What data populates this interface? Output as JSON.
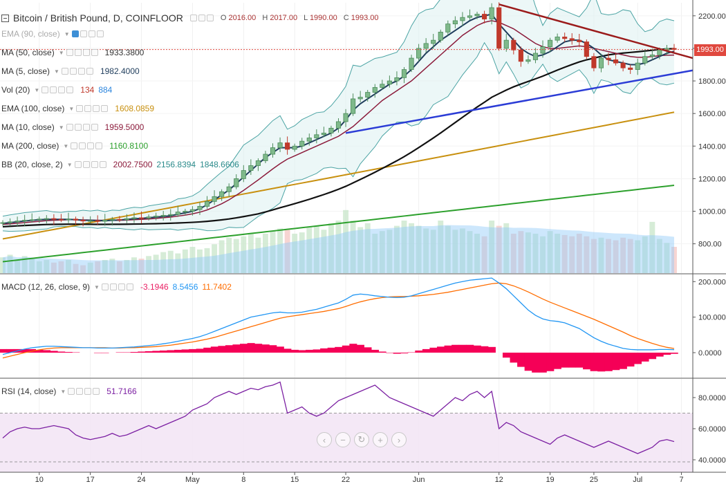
{
  "header": {
    "title": "Bitcoin / British Pound, D, COINFLOOR",
    "ohlc": {
      "o_label": "O",
      "o": "2016.00",
      "h_label": "H",
      "h": "2017.00",
      "l_label": "L",
      "l": "1990.00",
      "c_label": "C",
      "c": "1993.00"
    }
  },
  "legend": [
    {
      "name": "EMA (90, close)",
      "values": [],
      "muted": true
    },
    {
      "name": "MA (50, close)",
      "values": [
        {
          "v": "1933.3800",
          "color": "#333333"
        }
      ]
    },
    {
      "name": "MA (5, close)",
      "values": [
        {
          "v": "1982.4000",
          "color": "#1f3d5c"
        }
      ]
    },
    {
      "name": "Vol (20)",
      "values": [
        {
          "v": "134",
          "color": "#c0392b"
        },
        {
          "v": "884",
          "color": "#2e86de"
        }
      ]
    },
    {
      "name": "EMA (100, close)",
      "values": [
        {
          "v": "1608.0859",
          "color": "#c8900f"
        }
      ]
    },
    {
      "name": "MA (10, close)",
      "values": [
        {
          "v": "1959.5000",
          "color": "#8b1a3a"
        }
      ]
    },
    {
      "name": "MA (200, close)",
      "values": [
        {
          "v": "1160.8100",
          "color": "#2ca02c"
        }
      ]
    },
    {
      "name": "BB (20, close, 2)",
      "values": [
        {
          "v": "2002.7500",
          "color": "#8b1a3a"
        },
        {
          "v": "2156.8394",
          "color": "#2a8a8a"
        },
        {
          "v": "1848.6606",
          "color": "#2a8a8a"
        }
      ]
    }
  ],
  "macd_legend": {
    "name": "MACD (12, 26, close, 9)",
    "values": [
      {
        "v": "-3.1946",
        "color": "#e91e63"
      },
      {
        "v": "8.5456",
        "color": "#2196f3"
      },
      {
        "v": "11.7402",
        "color": "#ff6d00"
      }
    ]
  },
  "rsi_legend": {
    "name": "RSI (14, close)",
    "values": [
      {
        "v": "51.7166",
        "color": "#7b1fa2"
      }
    ]
  },
  "last_price": "1993.00",
  "nav_buttons": [
    {
      "name": "scroll-left-button",
      "glyph": "‹"
    },
    {
      "name": "zoom-out-button",
      "glyph": "−"
    },
    {
      "name": "reset-button",
      "glyph": "↻"
    },
    {
      "name": "zoom-in-button",
      "glyph": "+"
    },
    {
      "name": "scroll-right-button",
      "glyph": "›"
    }
  ],
  "chart_data": [
    {
      "type": "candlestick",
      "title": "Bitcoin / British Pound, D, COINFLOOR",
      "x_ticks": [
        {
          "label": "10",
          "i": 5
        },
        {
          "label": "17",
          "i": 12
        },
        {
          "label": "24",
          "i": 19
        },
        {
          "label": "May",
          "i": 26
        },
        {
          "label": "8",
          "i": 33
        },
        {
          "label": "15",
          "i": 40
        },
        {
          "label": "22",
          "i": 47
        },
        {
          "label": "Jun",
          "i": 57
        },
        {
          "label": "12",
          "i": 68
        },
        {
          "label": "19",
          "i": 75
        },
        {
          "label": "25",
          "i": 81
        },
        {
          "label": "Jul",
          "i": 87
        },
        {
          "label": "7",
          "i": 93
        }
      ],
      "y_ticks": [
        "800.00",
        "1000.00",
        "1200.00",
        "1400.00",
        "1600.00",
        "1800.00",
        "2000.00",
        "2200.00"
      ],
      "ylim": [
        620,
        2280
      ],
      "close": [
        930,
        935,
        940,
        945,
        948,
        952,
        955,
        950,
        948,
        952,
        945,
        940,
        942,
        938,
        945,
        950,
        948,
        955,
        960,
        958,
        965,
        970,
        975,
        980,
        995,
        1000,
        1010,
        1030,
        1060,
        1090,
        1120,
        1150,
        1200,
        1250,
        1280,
        1310,
        1350,
        1390,
        1420,
        1380,
        1400,
        1430,
        1450,
        1470,
        1480,
        1510,
        1550,
        1600,
        1690,
        1700,
        1730,
        1760,
        1780,
        1800,
        1820,
        1870,
        1940,
        2000,
        2030,
        2050,
        2100,
        2150,
        2170,
        2190,
        2200,
        2210,
        2180,
        2250,
        2000,
        2050,
        1990,
        1920,
        1930,
        1970,
        2010,
        2050,
        2070,
        2060,
        2050,
        2040,
        1950,
        1880,
        1940,
        1930,
        1910,
        1880,
        1870,
        1910,
        1950,
        1960,
        1990,
        2000,
        1993
      ],
      "vol": [
        720,
        740,
        700,
        730,
        710,
        690,
        700,
        680,
        690,
        700,
        670,
        660,
        680,
        690,
        700,
        710,
        690,
        700,
        720,
        710,
        730,
        740,
        760,
        770,
        750,
        780,
        800,
        780,
        790,
        820,
        850,
        870,
        860,
        880,
        900,
        870,
        900,
        920,
        940,
        930,
        900,
        910,
        950,
        960,
        930,
        980,
        1000,
        1080,
        1000,
        950,
        980,
        900,
        920,
        930,
        960,
        1000,
        980,
        960,
        940,
        930,
        1000,
        960,
        930,
        940,
        920,
        900,
        880,
        1000,
        960,
        980,
        900,
        920,
        910,
        900,
        880,
        920,
        900,
        890,
        880,
        900,
        880,
        860,
        870,
        860,
        850,
        870,
        860,
        850,
        880,
        990,
        860,
        830,
        800
      ],
      "ma5": [
        925,
        930,
        935,
        940,
        944,
        948,
        950,
        950,
        950,
        950,
        948,
        945,
        944,
        942,
        942,
        944,
        946,
        950,
        954,
        956,
        960,
        964,
        968,
        972,
        982,
        990,
        1000,
        1015,
        1040,
        1070,
        1100,
        1130,
        1170,
        1210,
        1250,
        1290,
        1330,
        1360,
        1390,
        1390,
        1390,
        1400,
        1420,
        1440,
        1460,
        1480,
        1510,
        1560,
        1620,
        1660,
        1690,
        1720,
        1750,
        1780,
        1800,
        1830,
        1870,
        1920,
        1970,
        2010,
        2050,
        2080,
        2110,
        2140,
        2170,
        2190,
        2200,
        2210,
        2150,
        2100,
        2050,
        2000,
        1970,
        1950,
        1960,
        1980,
        2010,
        2040,
        2050,
        2050,
        2030,
        2000,
        1960,
        1930,
        1920,
        1910,
        1900,
        1900,
        1910,
        1930,
        1950,
        1970,
        1982
      ],
      "ma10": [
        920,
        922,
        926,
        930,
        934,
        938,
        942,
        945,
        946,
        948,
        948,
        947,
        946,
        945,
        944,
        944,
        944,
        946,
        948,
        950,
        952,
        956,
        960,
        964,
        970,
        976,
        984,
        994,
        1008,
        1026,
        1046,
        1070,
        1098,
        1128,
        1160,
        1192,
        1226,
        1260,
        1292,
        1320,
        1340,
        1360,
        1380,
        1400,
        1420,
        1440,
        1460,
        1490,
        1520,
        1560,
        1600,
        1640,
        1680,
        1710,
        1740,
        1770,
        1800,
        1840,
        1880,
        1920,
        1960,
        2000,
        2040,
        2080,
        2110,
        2140,
        2160,
        2170,
        2160,
        2140,
        2120,
        2090,
        2060,
        2030,
        2010,
        2000,
        2000,
        2005,
        2010,
        2015,
        2010,
        2000,
        1990,
        1980,
        1970,
        1960,
        1950,
        1945,
        1945,
        1950,
        1955,
        1958,
        1959
      ]
    },
    {
      "type": "line",
      "title": "MACD (12, 26, close, 9)",
      "y_ticks": [
        "0.0000",
        "100.0000",
        "200.0000"
      ],
      "ylim": [
        -70,
        220
      ],
      "macd": [
        -5,
        0,
        5,
        10,
        14,
        16,
        18,
        18,
        17,
        16,
        15,
        14,
        14,
        13,
        13,
        13,
        14,
        15,
        16,
        18,
        20,
        22,
        25,
        28,
        32,
        36,
        40,
        45,
        52,
        60,
        68,
        76,
        84,
        92,
        100,
        104,
        108,
        112,
        114,
        112,
        112,
        114,
        118,
        122,
        128,
        134,
        140,
        150,
        162,
        165,
        163,
        160,
        158,
        156,
        155,
        156,
        160,
        166,
        172,
        178,
        184,
        190,
        196,
        200,
        204,
        206,
        208,
        210,
        196,
        180,
        160,
        140,
        120,
        105,
        95,
        90,
        88,
        84,
        76,
        68,
        55,
        42,
        32,
        24,
        18,
        12,
        9,
        8,
        8,
        8,
        9,
        9,
        8.5
      ],
      "signal": [
        -15,
        -10,
        -5,
        0,
        4,
        8,
        11,
        13,
        14,
        14,
        14,
        14,
        14,
        14,
        14,
        13,
        13,
        14,
        14,
        15,
        16,
        17,
        19,
        21,
        24,
        27,
        30,
        34,
        38,
        43,
        49,
        55,
        61,
        67,
        73,
        79,
        85,
        91,
        97,
        101,
        104,
        107,
        110,
        113,
        116,
        120,
        124,
        130,
        137,
        143,
        148,
        152,
        155,
        157,
        158,
        158,
        159,
        160,
        162,
        164,
        167,
        170,
        174,
        178,
        182,
        186,
        190,
        194,
        196,
        194,
        188,
        180,
        171,
        161,
        151,
        142,
        134,
        126,
        118,
        110,
        102,
        94,
        85,
        76,
        67,
        58,
        48,
        40,
        33,
        26,
        20,
        15,
        11.7
      ],
      "hist": [
        10,
        10,
        10,
        10,
        10,
        8,
        7,
        5,
        3,
        2,
        1,
        0,
        0,
        -1,
        -1,
        0,
        1,
        1,
        2,
        3,
        4,
        5,
        6,
        7,
        8,
        9,
        10,
        11,
        14,
        17,
        19,
        21,
        23,
        25,
        27,
        25,
        23,
        21,
        17,
        11,
        8,
        7,
        8,
        9,
        12,
        14,
        16,
        20,
        25,
        22,
        15,
        8,
        3,
        -1,
        -3,
        -2,
        1,
        6,
        10,
        14,
        17,
        20,
        22,
        22,
        22,
        20,
        18,
        16,
        0,
        -14,
        -28,
        -40,
        -51,
        -56,
        -56,
        -52,
        -46,
        -42,
        -42,
        -42,
        -47,
        -52,
        -53,
        -52,
        -49,
        -46,
        -39,
        -32,
        -25,
        -18,
        -11,
        -6,
        -3.2
      ]
    },
    {
      "type": "line",
      "title": "RSI (14, close)",
      "y_ticks": [
        "40.0000",
        "60.0000",
        "80.0000"
      ],
      "ylim": [
        32,
        92
      ],
      "hlines": [
        30,
        70
      ],
      "rsi": [
        54,
        58,
        60,
        61,
        60,
        60,
        61,
        62,
        61,
        60,
        56,
        54,
        53,
        54,
        55,
        57,
        55,
        56,
        58,
        60,
        62,
        60,
        62,
        64,
        66,
        68,
        72,
        74,
        76,
        80,
        82,
        84,
        82,
        84,
        86,
        85,
        87,
        88,
        90,
        70,
        72,
        74,
        70,
        68,
        70,
        74,
        78,
        80,
        82,
        84,
        86,
        88,
        84,
        80,
        78,
        76,
        74,
        72,
        70,
        68,
        72,
        76,
        80,
        78,
        82,
        84,
        80,
        84,
        60,
        64,
        62,
        58,
        56,
        54,
        52,
        50,
        54,
        56,
        54,
        52,
        50,
        48,
        50,
        52,
        50,
        48,
        46,
        44,
        46,
        48,
        52,
        53,
        51.7
      ]
    }
  ]
}
